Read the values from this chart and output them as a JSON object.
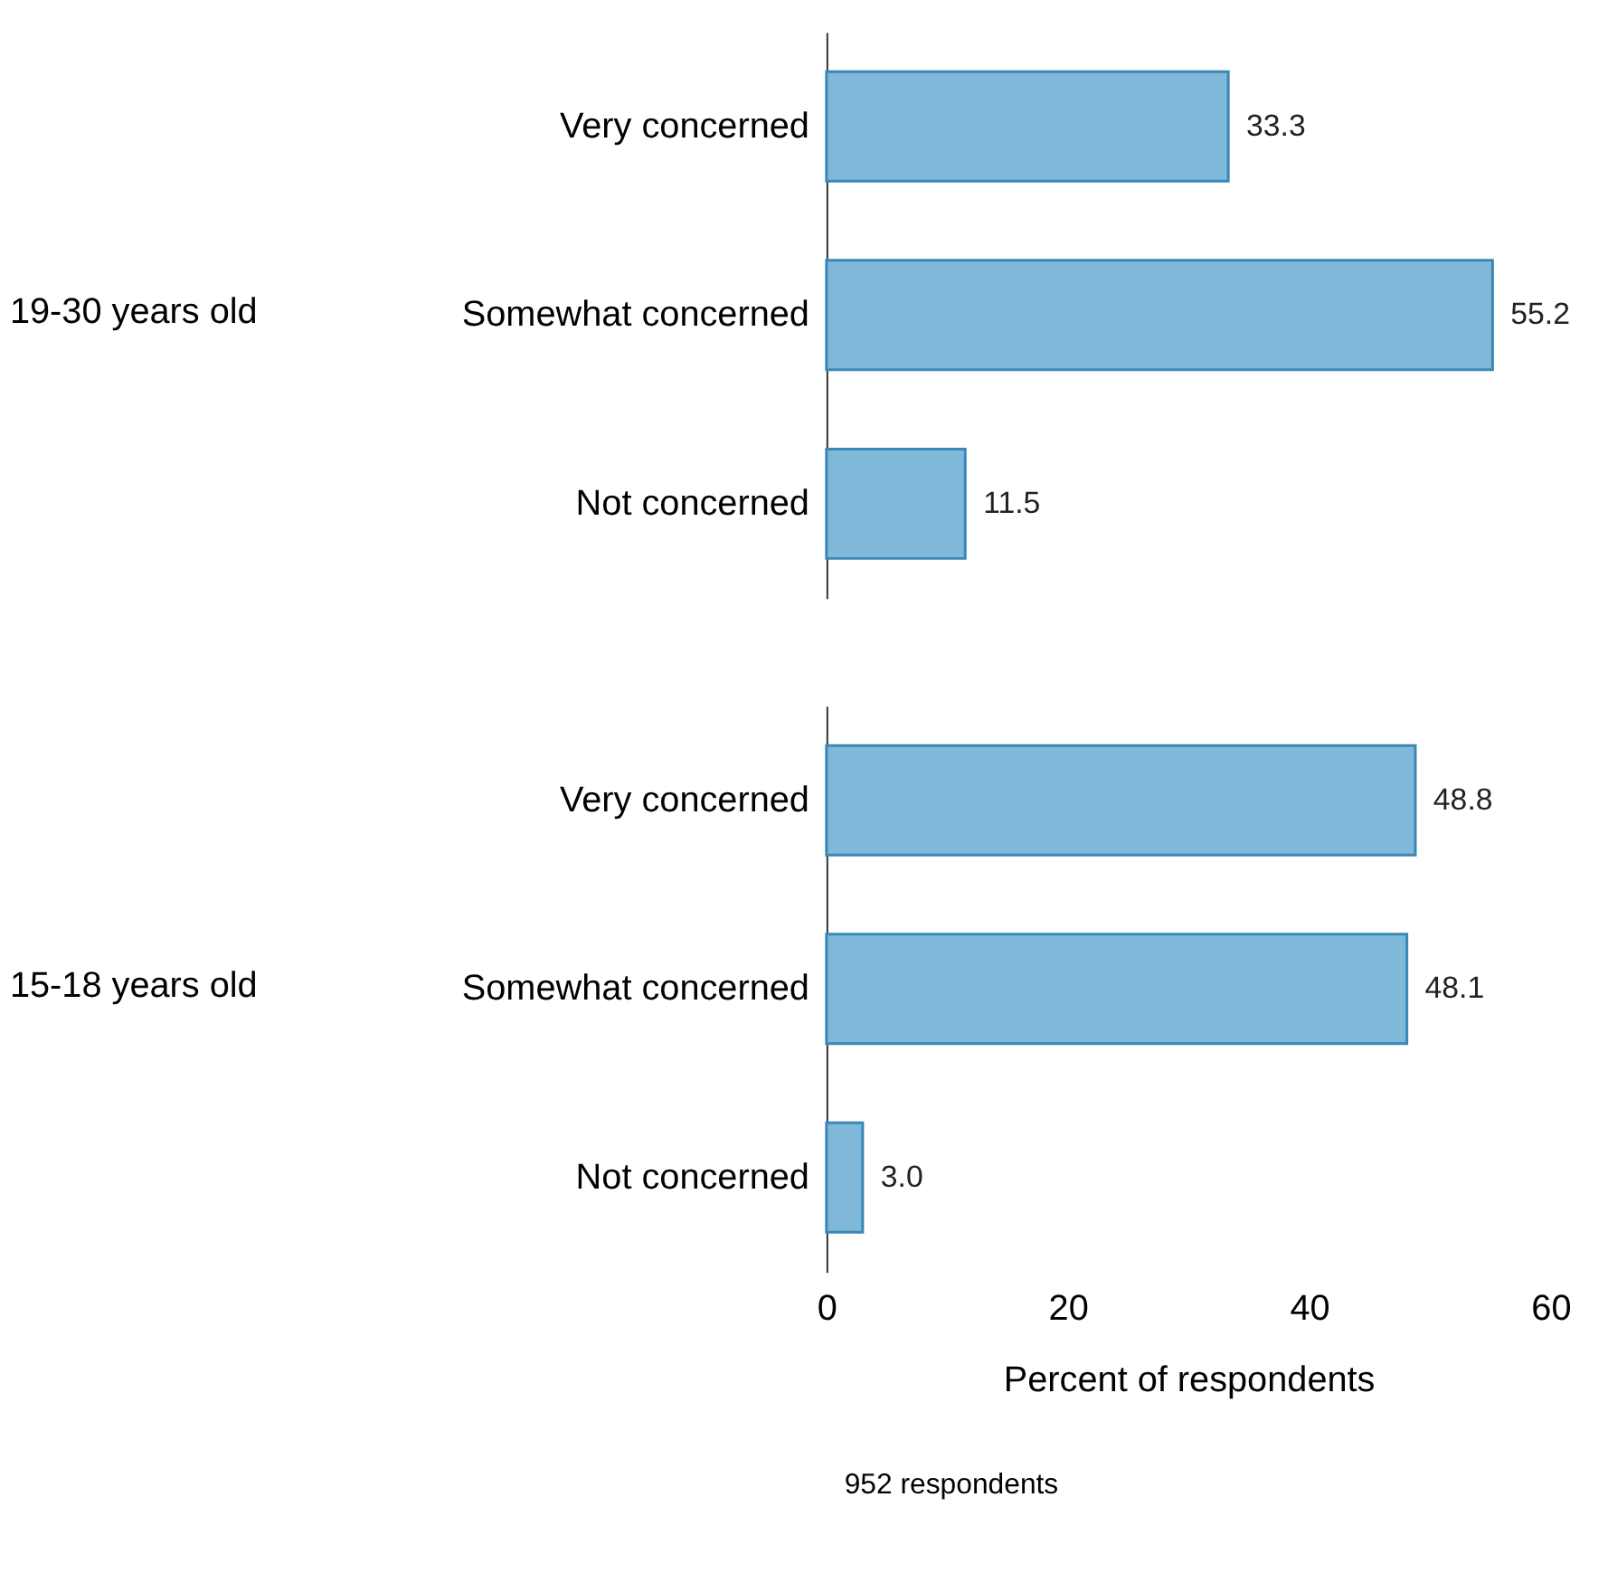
{
  "chart_data": [
    {
      "type": "bar",
      "orientation": "horizontal",
      "ylabel": "19-30 years old",
      "categories": [
        "Very concerned",
        "Somewhat concerned",
        "Not concerned"
      ],
      "values": [
        33.3,
        55.2,
        11.5
      ],
      "color": "#7fb8d9",
      "data_labels": true,
      "xlim": [
        0,
        60
      ],
      "xticks": [
        0,
        20,
        40,
        60
      ],
      "tick_labels": "y"
    },
    {
      "type": "bar",
      "orientation": "horizontal",
      "ylabel": "15-18 years old",
      "xlabel": "Percent of respondents",
      "categories": [
        "Very concerned",
        "Somewhat concerned",
        "Not concerned"
      ],
      "values": [
        48.8,
        48.1,
        3.0
      ],
      "value_labels": [
        "48.8",
        "48.1",
        "3.0"
      ],
      "color": "#7fb8d9",
      "xlim": [
        0,
        60
      ],
      "xticks": [
        0,
        20,
        40,
        60
      ],
      "annotations": [
        "952 respondents"
      ]
    }
  ]
}
